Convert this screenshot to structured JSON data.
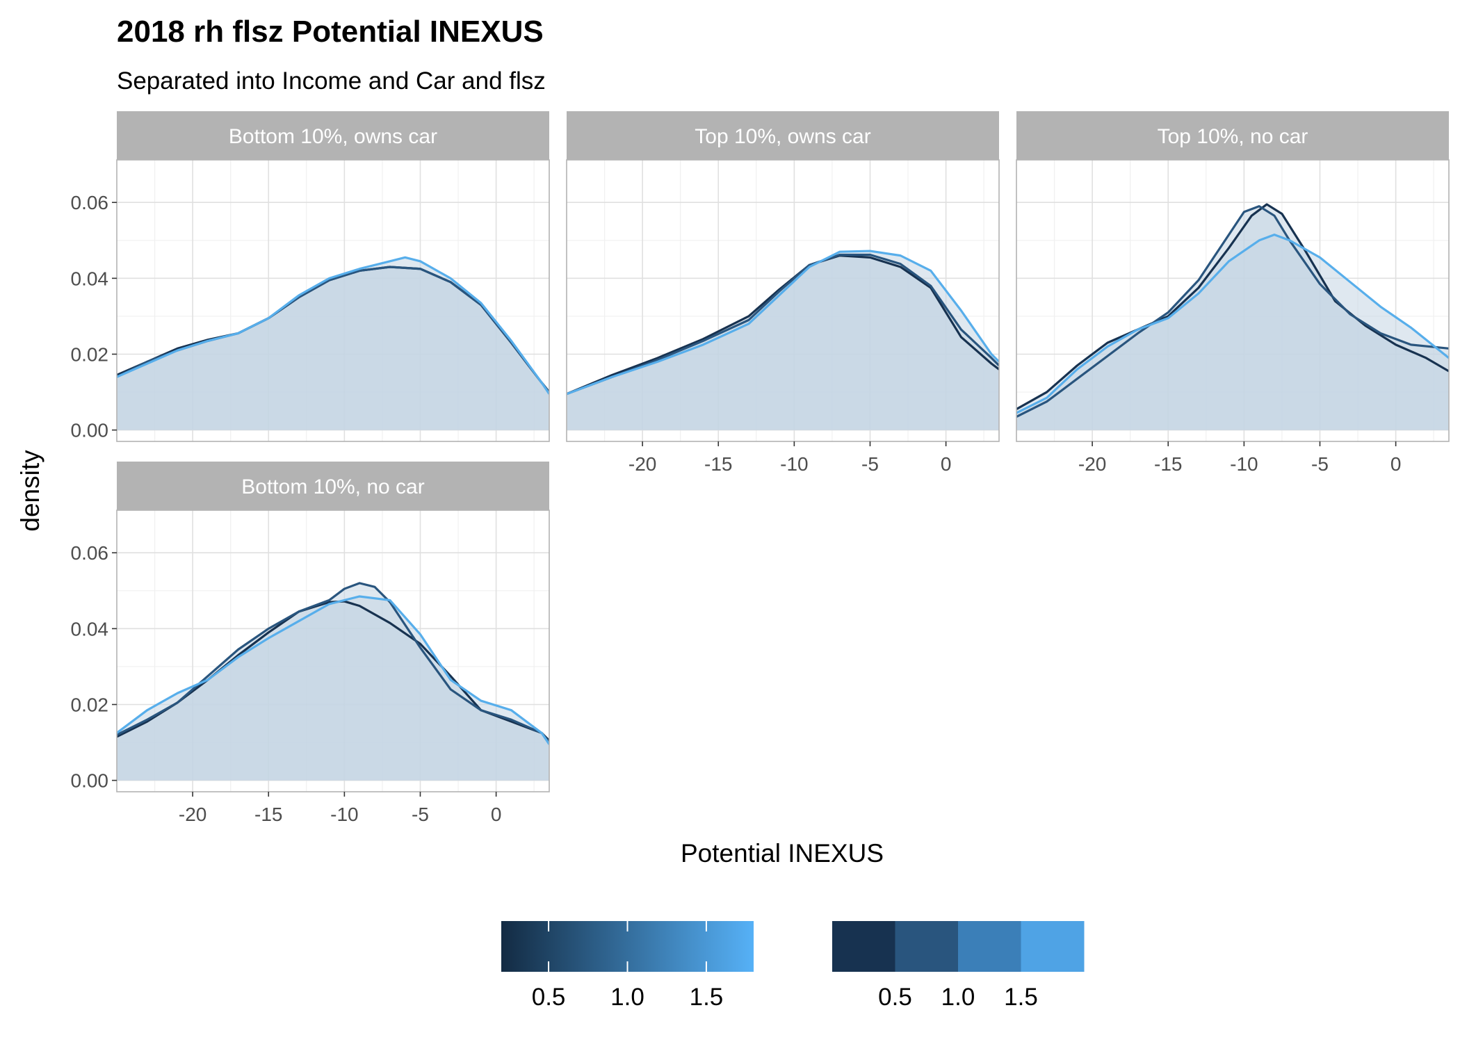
{
  "chart_data": {
    "type": "area",
    "title": "2018 rh flsz Potential INEXUS",
    "subtitle": "Separated into Income and Car and flsz",
    "xlabel": "Potential INEXUS",
    "ylabel": "density",
    "xlim": [
      -25,
      3.5
    ],
    "ylim": [
      0,
      0.06
    ],
    "x_ticks": [
      -20,
      -15,
      -10,
      -5,
      0
    ],
    "x_tick_labels": [
      "-20",
      "-15",
      "-10",
      "-5",
      "0"
    ],
    "y_ticks": [
      0,
      0.02,
      0.04,
      0.06
    ],
    "y_tick_labels": [
      "0.00",
      "0.02",
      "0.04",
      "0.06"
    ],
    "grid": true,
    "legend_position": "bottom",
    "colors": {
      "series_0_5": "#173250",
      "series_1_0": "#29557e",
      "series_1_5": "#57aeeb",
      "fill": "#c5d6e3",
      "strip": "#b3b3b3"
    },
    "panels": [
      {
        "label": "Bottom 10%, owns car",
        "series": [
          {
            "color": "#173250",
            "x": [
              -25,
              -23,
              -21,
              -19,
              -17,
              -15,
              -13,
              -11,
              -9,
              -7,
              -5,
              -3,
              -1,
              1,
              3,
              3.5
            ],
            "y": [
              0.0145,
              0.018,
              0.0215,
              0.0238,
              0.0255,
              0.0295,
              0.035,
              0.0395,
              0.042,
              0.043,
              0.0425,
              0.039,
              0.033,
              0.023,
              0.0125,
              0.01
            ]
          },
          {
            "color": "#29557e",
            "x": [
              -25,
              -23,
              -21,
              -19,
              -17,
              -15,
              -13,
              -11,
              -9,
              -7,
              -5,
              -3,
              -1,
              1,
              3,
              3.5
            ],
            "y": [
              0.014,
              0.018,
              0.021,
              0.0235,
              0.0255,
              0.0295,
              0.035,
              0.0395,
              0.042,
              0.043,
              0.0425,
              0.039,
              0.033,
              0.023,
              0.0125,
              0.01
            ]
          },
          {
            "color": "#57aeeb",
            "x": [
              -25,
              -23,
              -21,
              -19,
              -17,
              -15,
              -13,
              -11,
              -9,
              -7,
              -6,
              -5,
              -3,
              -1,
              1,
              3,
              3.5
            ],
            "y": [
              0.014,
              0.0175,
              0.021,
              0.0235,
              0.0255,
              0.0295,
              0.0355,
              0.04,
              0.0425,
              0.0445,
              0.0455,
              0.0445,
              0.04,
              0.0335,
              0.0235,
              0.0125,
              0.0095
            ]
          }
        ]
      },
      {
        "label": "Top 10%, owns car",
        "series": [
          {
            "color": "#173250",
            "x": [
              -25,
              -22,
              -19,
              -16,
              -13,
              -11,
              -9,
              -7,
              -5,
              -3,
              -1,
              1,
              3,
              3.5
            ],
            "y": [
              0.0095,
              0.0145,
              0.019,
              0.024,
              0.03,
              0.037,
              0.0435,
              0.046,
              0.0455,
              0.043,
              0.0375,
              0.0245,
              0.0175,
              0.016
            ]
          },
          {
            "color": "#29557e",
            "x": [
              -25,
              -22,
              -19,
              -16,
              -13,
              -11,
              -9,
              -7,
              -5,
              -3,
              -1,
              1,
              3,
              3.5
            ],
            "y": [
              0.0095,
              0.014,
              0.0185,
              0.0235,
              0.029,
              0.0365,
              0.0435,
              0.0462,
              0.0462,
              0.0438,
              0.038,
              0.0265,
              0.019,
              0.017
            ]
          },
          {
            "color": "#57aeeb",
            "x": [
              -25,
              -22,
              -19,
              -16,
              -13,
              -11,
              -9,
              -7,
              -5,
              -3,
              -1,
              1,
              3,
              3.5
            ],
            "y": [
              0.0095,
              0.014,
              0.018,
              0.0225,
              0.028,
              0.0355,
              0.043,
              0.047,
              0.0472,
              0.046,
              0.042,
              0.0315,
              0.02,
              0.018
            ]
          }
        ]
      },
      {
        "label": "Top 10%, no car",
        "series": [
          {
            "color": "#173250",
            "x": [
              -25,
              -23,
              -21,
              -19,
              -17,
              -15,
              -13,
              -11,
              -9.5,
              -8.5,
              -7.5,
              -6,
              -4,
              -2,
              0,
              2,
              3.5
            ],
            "y": [
              0.0055,
              0.01,
              0.017,
              0.023,
              0.0265,
              0.03,
              0.0375,
              0.048,
              0.0565,
              0.0595,
              0.057,
              0.0475,
              0.034,
              0.0275,
              0.0225,
              0.019,
              0.0155
            ]
          },
          {
            "color": "#29557e",
            "x": [
              -25,
              -23,
              -21,
              -19,
              -17,
              -15,
              -13,
              -11,
              -10,
              -9,
              -8,
              -7,
              -5,
              -3,
              -1,
              1,
              3.5
            ],
            "y": [
              0.0035,
              0.0075,
              0.0135,
              0.0195,
              0.0255,
              0.031,
              0.0395,
              0.0515,
              0.0575,
              0.059,
              0.0565,
              0.05,
              0.0385,
              0.0305,
              0.0255,
              0.0225,
              0.0215
            ]
          },
          {
            "color": "#57aeeb",
            "x": [
              -25,
              -23,
              -21,
              -19,
              -17,
              -15,
              -13,
              -11,
              -9,
              -8,
              -7,
              -5,
              -3,
              -1,
              1,
              3.5
            ],
            "y": [
              0.0045,
              0.0085,
              0.016,
              0.022,
              0.0265,
              0.0295,
              0.036,
              0.0445,
              0.05,
              0.0515,
              0.05,
              0.0455,
              0.039,
              0.0325,
              0.027,
              0.019
            ]
          }
        ]
      },
      {
        "label": "Bottom 10%, no car",
        "series": [
          {
            "color": "#173250",
            "x": [
              -25,
              -23,
              -21,
              -19,
              -17,
              -15,
              -13,
              -11,
              -10,
              -9,
              -7,
              -5,
              -3,
              -1,
              1,
              3,
              3.5
            ],
            "y": [
              0.0115,
              0.0155,
              0.0205,
              0.0265,
              0.033,
              0.039,
              0.0445,
              0.047,
              0.0472,
              0.046,
              0.0415,
              0.036,
              0.0275,
              0.0185,
              0.0155,
              0.0125,
              0.0105
            ]
          },
          {
            "color": "#29557e",
            "x": [
              -25,
              -23,
              -21,
              -19,
              -17,
              -15,
              -13,
              -11,
              -10,
              -9,
              -8,
              -7,
              -5,
              -3,
              -1,
              1,
              3,
              3.5
            ],
            "y": [
              0.012,
              0.016,
              0.0205,
              0.0275,
              0.0345,
              0.04,
              0.0445,
              0.0475,
              0.0505,
              0.052,
              0.051,
              0.047,
              0.035,
              0.024,
              0.0185,
              0.016,
              0.0125,
              0.01
            ]
          },
          {
            "color": "#57aeeb",
            "x": [
              -25,
              -23,
              -21,
              -19,
              -17,
              -15,
              -13,
              -11,
              -9,
              -7,
              -5,
              -3,
              -1,
              1,
              3,
              3.5
            ],
            "y": [
              0.0125,
              0.0185,
              0.023,
              0.0265,
              0.0325,
              0.0375,
              0.042,
              0.0465,
              0.0485,
              0.0475,
              0.0385,
              0.0265,
              0.021,
              0.0185,
              0.0125,
              0.0095
            ]
          }
        ]
      }
    ],
    "legends": [
      {
        "kind": "colorbar",
        "tick_labels": [
          "0.5",
          "1.0",
          "1.5"
        ],
        "ticks": [
          0.5,
          1.0,
          1.5
        ],
        "range": [
          0.2,
          1.8
        ],
        "colors": [
          "#132b43",
          "#56b1f7"
        ]
      },
      {
        "kind": "steps",
        "tick_labels": [
          "0.5",
          "1.0",
          "1.5"
        ],
        "colors": [
          "#173250",
          "#29557e",
          "#3b7fb8",
          "#4fa3e5"
        ]
      }
    ]
  }
}
